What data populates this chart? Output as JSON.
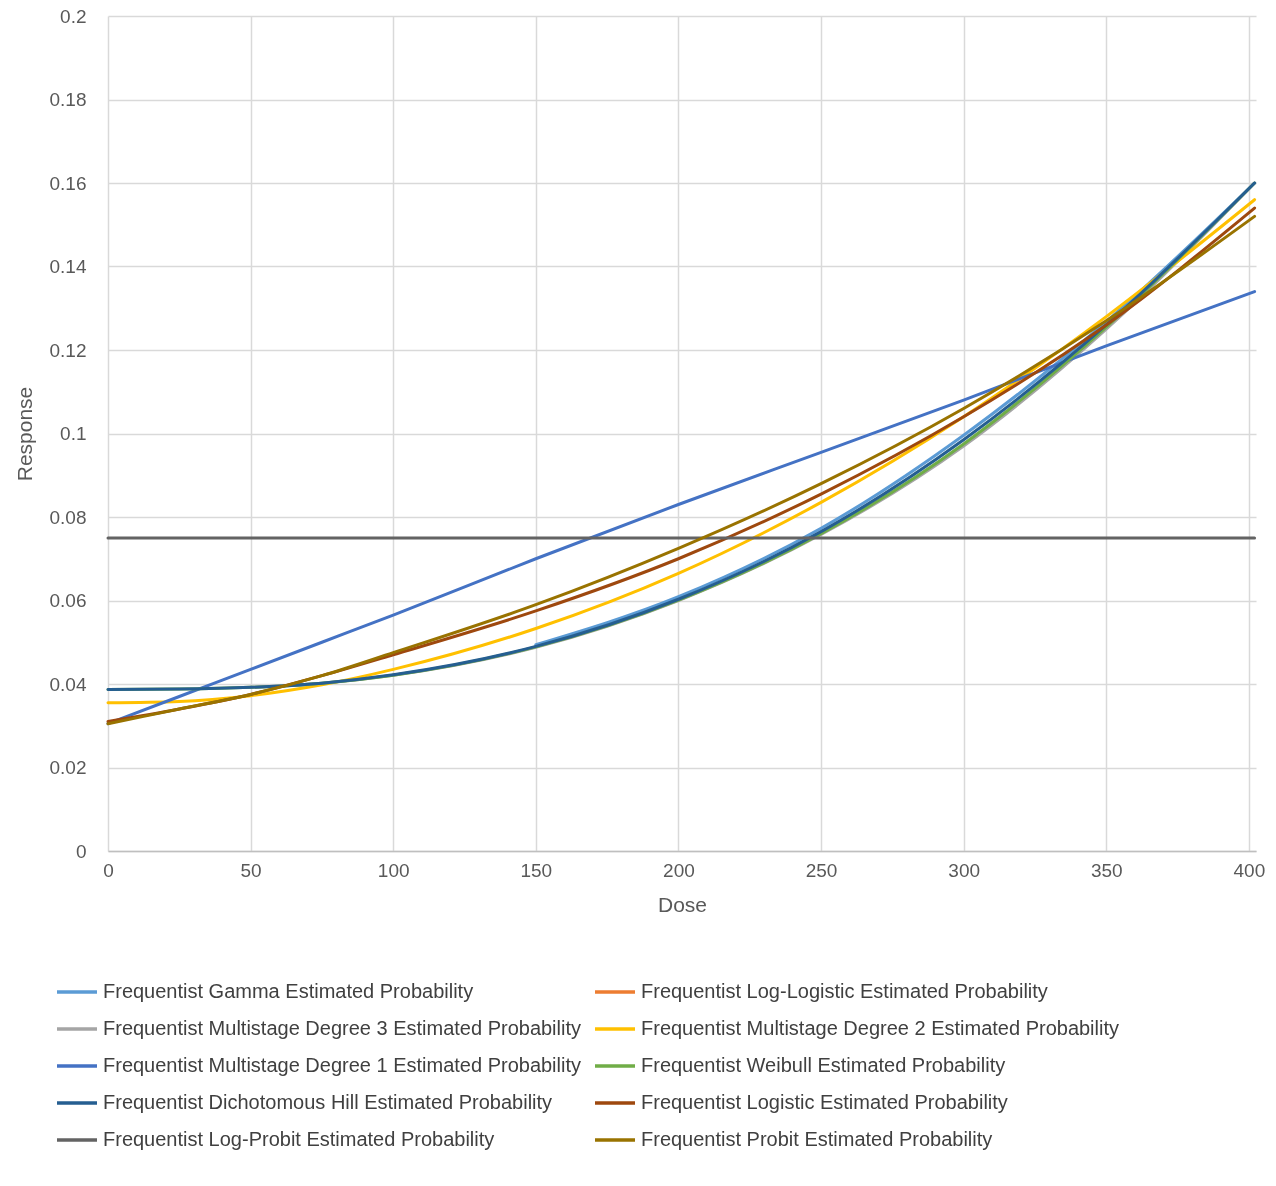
{
  "chart_data": {
    "type": "line",
    "xlabel": "Dose",
    "ylabel": "Response",
    "x": [
      0,
      25,
      50,
      75,
      100,
      150,
      200,
      250,
      300,
      350,
      402
    ],
    "xlim": [
      0,
      402.5
    ],
    "xticks": [
      0,
      50,
      100,
      150,
      200,
      250,
      300,
      350,
      400
    ],
    "ylim": [
      0,
      0.2
    ],
    "yticks": [
      0,
      0.02,
      0.04,
      0.06,
      0.08,
      0.1,
      0.12,
      0.14,
      0.16,
      0.18,
      0.2
    ],
    "grid": true,
    "legend": "bottom",
    "marker": "none",
    "line_style": "solid",
    "series": [
      {
        "name": "Frequentist Gamma Estimated Probability",
        "color": "#5b9bd5",
        "values": [
          null,
          null,
          null,
          null,
          null,
          0.0494,
          0.0609,
          0.0773,
          0.0996,
          0.1268,
          0.16
        ]
      },
      {
        "name": "Frequentist Log-Logistic Estimated Probability",
        "color": "#ed7d31",
        "values": [
          null,
          null,
          null,
          null,
          null,
          null,
          null,
          null,
          null,
          null,
          null
        ]
      },
      {
        "name": "Frequentist Multistage Degree 3 Estimated Probability",
        "color": "#a5a5a5",
        "values": [
          null,
          null,
          0.0392,
          0.0402,
          0.0421,
          0.0488,
          0.06,
          0.0758,
          0.097,
          0.125,
          0.16
        ]
      },
      {
        "name": "Frequentist Multistage Degree 2 Estimated Probability",
        "color": "#ffc000",
        "values": [
          0.0355,
          0.0358,
          0.0372,
          0.0398,
          0.0435,
          0.0533,
          0.0665,
          0.0835,
          0.104,
          0.128,
          0.156
        ]
      },
      {
        "name": "Frequentist Multistage Degree 1 Estimated Probability",
        "color": "#4472c4",
        "values": [
          0.0305,
          0.037,
          0.0435,
          0.05,
          0.0565,
          0.07,
          0.083,
          0.0955,
          0.108,
          0.121,
          0.134
        ]
      },
      {
        "name": "Frequentist Weibull Estimated Probability",
        "color": "#70ad47",
        "values": [
          0.0387,
          0.0388,
          0.0392,
          0.0402,
          0.0421,
          0.0489,
          0.0601,
          0.076,
          0.0975,
          0.1255,
          0.16
        ]
      },
      {
        "name": "Frequentist Dichotomous Hill Estimated Probability",
        "color": "#255e91",
        "values": [
          0.0387,
          0.0388,
          0.0392,
          0.0402,
          0.0422,
          0.049,
          0.0603,
          0.0765,
          0.0985,
          0.126,
          0.16
        ]
      },
      {
        "name": "Frequentist Logistic Estimated Probability",
        "color": "#9e480e",
        "values": [
          0.031,
          0.034,
          0.0375,
          0.042,
          0.047,
          0.0575,
          0.07,
          0.0855,
          0.104,
          0.126,
          0.154
        ]
      },
      {
        "name": "Frequentist Log-Probit Estimated Probability",
        "color": "#636363",
        "values": [
          0.075,
          0.075,
          0.075,
          0.075,
          0.075,
          0.075,
          0.075,
          0.075,
          0.075,
          0.075,
          0.075
        ]
      },
      {
        "name": "Frequentist Probit Estimated Probability",
        "color": "#997300",
        "values": [
          0.0305,
          0.034,
          0.0375,
          0.042,
          0.0475,
          0.059,
          0.0725,
          0.088,
          0.106,
          0.127,
          0.152
        ]
      }
    ]
  }
}
